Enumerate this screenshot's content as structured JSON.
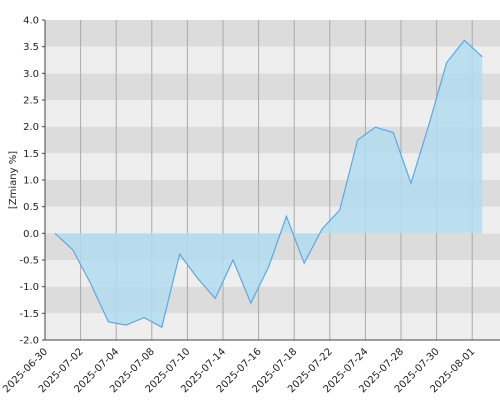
{
  "chart_data": {
    "type": "area",
    "ylabel": "[Zmiany %]",
    "categories": [
      "2025-06-30",
      null,
      "2025-07-02",
      null,
      "2025-07-04",
      null,
      "2025-07-08",
      null,
      "2025-07-10",
      null,
      "2025-07-14",
      null,
      "2025-07-16",
      null,
      "2025-07-18",
      null,
      "2025-07-22",
      null,
      "2025-07-24",
      null,
      "2025-07-28",
      null,
      "2025-07-30",
      null,
      "2025-08-01"
    ],
    "values": [
      0.0,
      -0.31,
      -0.94,
      -1.66,
      -1.72,
      -1.58,
      -1.76,
      -0.39,
      -0.84,
      -1.22,
      -0.5,
      -1.31,
      -0.63,
      0.32,
      -0.56,
      0.08,
      0.44,
      1.75,
      1.99,
      1.89,
      0.94,
      2.03,
      3.2,
      3.62,
      3.31
    ],
    "color": "#5aa9e6",
    "fill_color": "#b3dcee",
    "ylim": [
      -2,
      4
    ],
    "yticks": [
      {
        "value": -2,
        "label": "-2.0"
      },
      {
        "value": -1.5,
        "label": "-1.5"
      },
      {
        "value": -1,
        "label": "-1.0"
      },
      {
        "value": -0.5,
        "label": "-0.5"
      },
      {
        "value": 0,
        "label": "0.0"
      },
      {
        "value": 0.5,
        "label": "0.5"
      },
      {
        "value": 1,
        "label": "1.0"
      },
      {
        "value": 1.5,
        "label": "1.5"
      },
      {
        "value": 2,
        "label": "2.0"
      },
      {
        "value": 2.5,
        "label": "2.5"
      },
      {
        "value": 3,
        "label": "3.0"
      },
      {
        "value": 3.5,
        "label": "3.5"
      },
      {
        "value": 4,
        "label": "4.0"
      }
    ],
    "grid": true
  }
}
